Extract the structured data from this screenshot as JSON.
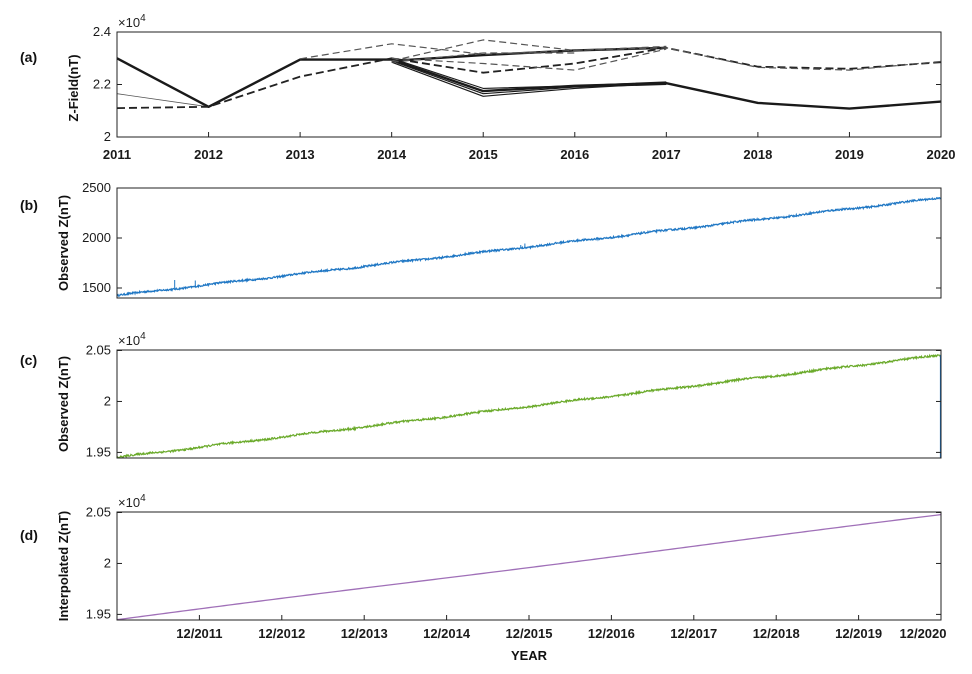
{
  "chart_data": [
    {
      "panel": "(a)",
      "type": "line",
      "ylabel": "Z-Field(nT)",
      "multiplier": "×10",
      "multiplier_exp": "4",
      "xlim": [
        2011,
        2020
      ],
      "ylim": [
        2.0,
        2.4
      ],
      "x_ticks": [
        "2011",
        "2012",
        "2013",
        "2014",
        "2015",
        "2016",
        "2017",
        "2018",
        "2019",
        "2020"
      ],
      "y_ticks": [
        "2",
        "2.2",
        "2.4"
      ],
      "y_tick_values": [
        2.0,
        2.2,
        2.4
      ],
      "series": [
        {
          "style": "solid-thick",
          "x": [
            2011,
            2012,
            2013,
            2014,
            2015,
            2016,
            2017,
            2018,
            2019,
            2020
          ],
          "y": [
            2.3,
            2.115,
            2.295,
            2.295,
            2.175,
            2.195,
            2.205,
            2.13,
            2.108,
            2.135
          ]
        },
        {
          "style": "solid",
          "x": [
            2014,
            2015,
            2016,
            2017
          ],
          "y": [
            2.29,
            2.165,
            2.19,
            2.2
          ]
        },
        {
          "style": "solid",
          "x": [
            2014,
            2015,
            2016,
            2017
          ],
          "y": [
            2.285,
            2.155,
            2.185,
            2.205
          ]
        },
        {
          "style": "solid",
          "x": [
            2014,
            2015,
            2016,
            2017
          ],
          "y": [
            2.3,
            2.185,
            2.195,
            2.21
          ]
        },
        {
          "style": "solid-thin",
          "x": [
            2011,
            2012
          ],
          "y": [
            2.165,
            2.115
          ]
        },
        {
          "style": "solid-thick",
          "x": [
            2014,
            2015,
            2016,
            2017
          ],
          "y": [
            2.29,
            2.312,
            2.33,
            2.34
          ]
        },
        {
          "style": "dashed-thick",
          "x": [
            2011,
            2012,
            2013,
            2014,
            2015,
            2016,
            2017,
            2018,
            2019,
            2020
          ],
          "y": [
            2.11,
            2.115,
            2.23,
            2.3,
            2.245,
            2.28,
            2.34,
            2.268,
            2.26,
            2.285
          ]
        },
        {
          "style": "dashed",
          "x": [
            2013,
            2014,
            2015,
            2016,
            2017,
            2018,
            2019,
            2020
          ],
          "y": [
            2.298,
            2.355,
            2.315,
            2.33,
            2.34,
            2.265,
            2.255,
            2.288
          ]
        },
        {
          "style": "dashed",
          "x": [
            2014,
            2015,
            2016,
            2017
          ],
          "y": [
            2.29,
            2.37,
            2.33,
            2.345
          ]
        },
        {
          "style": "dashed",
          "x": [
            2014,
            2015,
            2016,
            2017
          ],
          "y": [
            2.3,
            2.28,
            2.255,
            2.335
          ]
        },
        {
          "style": "dashed",
          "x": [
            2014,
            2015,
            2016
          ],
          "y": [
            2.285,
            2.32,
            2.32
          ]
        }
      ]
    },
    {
      "panel": "(b)",
      "type": "line",
      "ylabel": "Observed Z(nT)",
      "color": "#1f77c4",
      "ylim": [
        1400,
        2500
      ],
      "y_ticks": [
        "1500",
        "2000",
        "2500"
      ],
      "y_tick_values": [
        1500,
        2000,
        2500
      ],
      "x_start": "2011-01",
      "x_end": "2020-12",
      "y_start": 1425,
      "y_end": 2400,
      "spikes": [
        {
          "t": 0.07,
          "y": 1580
        },
        {
          "t": 0.095,
          "y": 1575
        },
        {
          "t": 0.22,
          "y": 1650
        },
        {
          "t": 0.49,
          "y": 1930
        },
        {
          "t": 0.495,
          "y": 1945
        }
      ]
    },
    {
      "panel": "(c)",
      "type": "line",
      "ylabel": "Observed Z(nT)",
      "color": "#6aaa2a",
      "multiplier": "×10",
      "multiplier_exp": "4",
      "ylim": [
        1.9445,
        2.0505
      ],
      "y_ticks": [
        "1.95",
        "2",
        "2.05"
      ],
      "y_tick_values": [
        1.95,
        2.0,
        2.05
      ],
      "y_start": 1.945,
      "y_end": 2.0455
    },
    {
      "panel": "(d)",
      "type": "line",
      "ylabel": "Interpolated Z(nT)",
      "color": "#a070b8",
      "multiplier": "×10",
      "multiplier_exp": "4",
      "ylim": [
        1.9445,
        2.0505
      ],
      "y_ticks": [
        "1.95",
        "2",
        "2.05"
      ],
      "y_tick_values": [
        1.95,
        2.0,
        2.05
      ],
      "y_start": 1.9448,
      "y_end": 2.0478,
      "xlabel": "YEAR",
      "x_ticks": [
        "12/2011",
        "12/2012",
        "12/2013",
        "12/2014",
        "12/2015",
        "12/2016",
        "12/2017",
        "12/2018",
        "12/2019",
        "12/2020"
      ]
    }
  ]
}
